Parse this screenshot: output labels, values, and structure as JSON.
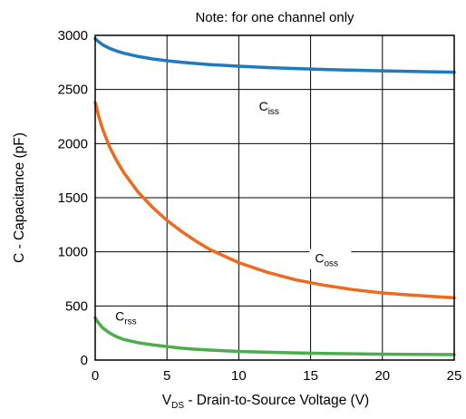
{
  "chart_data": {
    "type": "line",
    "title": "Note: for one channel only",
    "xlabel": {
      "main": "V",
      "sub": "DS",
      "rest": " - Drain-to-Source Voltage (V)"
    },
    "ylabel": "C - Capacitance (pF)",
    "xlim": [
      0,
      25
    ],
    "ylim": [
      0,
      3000
    ],
    "x_ticks": [
      0,
      5,
      10,
      15,
      20,
      25
    ],
    "y_ticks": [
      0,
      500,
      1000,
      1500,
      2000,
      2500,
      3000
    ],
    "grid": true,
    "series": [
      {
        "name": "Ciss",
        "label_main": "C",
        "label_sub": "iss",
        "color": "#1f7bbf",
        "x": [
          0,
          0.25,
          0.5,
          1,
          1.5,
          2,
          3,
          4,
          5,
          6,
          7,
          8,
          10,
          12,
          14,
          16,
          18,
          20,
          22,
          25
        ],
        "y": [
          2970,
          2940,
          2915,
          2880,
          2855,
          2835,
          2805,
          2782,
          2765,
          2752,
          2740,
          2730,
          2715,
          2703,
          2693,
          2685,
          2678,
          2672,
          2667,
          2660
        ]
      },
      {
        "name": "Coss",
        "label_main": "C",
        "label_sub": "oss",
        "color": "#ed6b20",
        "x": [
          0,
          0.25,
          0.5,
          1,
          1.5,
          2,
          3,
          4,
          5,
          6,
          7,
          8,
          10,
          12,
          14,
          16,
          18,
          20,
          22,
          25
        ],
        "y": [
          2380,
          2250,
          2140,
          1970,
          1840,
          1730,
          1550,
          1410,
          1290,
          1190,
          1100,
          1020,
          900,
          810,
          740,
          690,
          650,
          620,
          600,
          575
        ]
      },
      {
        "name": "Crss",
        "label_main": "C",
        "label_sub": "rss",
        "color": "#4cad4c",
        "x": [
          0,
          0.25,
          0.5,
          1,
          1.5,
          2,
          3,
          4,
          5,
          6,
          7,
          8,
          10,
          12,
          14,
          16,
          18,
          20,
          22,
          25
        ],
        "y": [
          390,
          340,
          300,
          250,
          215,
          190,
          160,
          140,
          125,
          110,
          100,
          92,
          80,
          72,
          66,
          61,
          58,
          55,
          52,
          50
        ]
      }
    ]
  }
}
